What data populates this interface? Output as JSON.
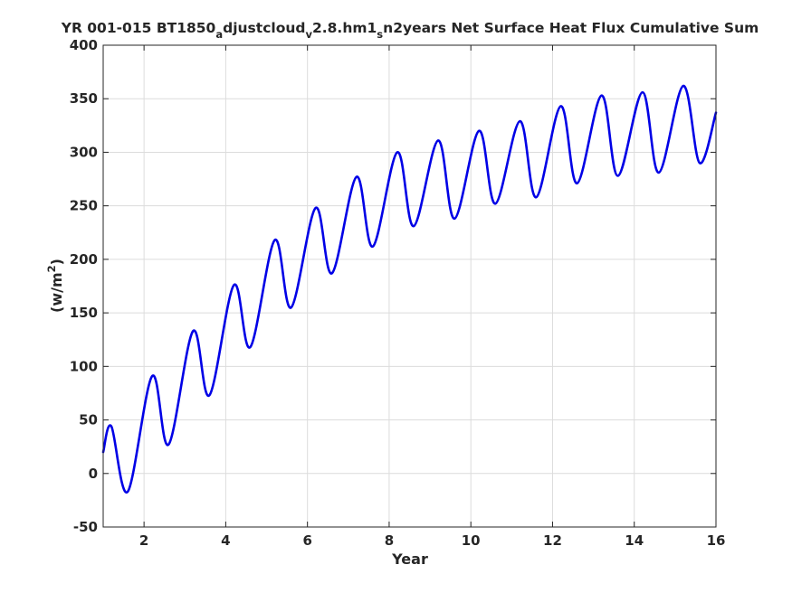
{
  "figure": {
    "background": "#ffffff",
    "line_color": "#0000e6",
    "axis_color": "#262626",
    "grid_color": "#dcdcdc"
  },
  "chart_data": {
    "type": "line",
    "title": {
      "part1": "YR 001-015 BT1850",
      "sub1": "a",
      "part2": "djustcloud",
      "sub2": "v",
      "part3": "2.8.hm1",
      "sub3": "s",
      "part4": "n2years Net Surface Heat Flux  Cumulative Sum"
    },
    "xlabel": "Year",
    "ylabel": {
      "base": "(w/m",
      "sup": "2",
      "close": ")"
    },
    "xlim": [
      1,
      16
    ],
    "ylim": [
      -50,
      400
    ],
    "xticks": [
      2,
      4,
      6,
      8,
      10,
      12,
      14,
      16
    ],
    "yticks": [
      -50,
      0,
      50,
      100,
      150,
      200,
      250,
      300,
      350,
      400
    ],
    "grid": true,
    "series": [
      {
        "x": [
          1.0,
          1.2,
          1.6,
          2.2,
          2.6,
          3.2,
          3.6,
          4.2,
          4.6,
          5.2,
          5.6,
          6.2,
          6.6,
          7.2,
          7.6,
          8.2,
          8.6,
          9.2,
          9.6,
          10.2,
          10.6,
          11.2,
          11.6,
          12.2,
          12.6,
          13.2,
          13.6,
          14.2,
          14.6,
          15.2,
          15.6,
          16.0
        ],
        "y": [
          20,
          44,
          -17,
          91,
          27,
          133,
          73,
          176,
          118,
          218,
          155,
          248,
          187,
          277,
          212,
          300,
          231,
          311,
          238,
          320,
          252,
          329,
          258,
          343,
          271,
          353,
          278,
          356,
          281,
          362,
          290,
          337
        ]
      }
    ]
  }
}
